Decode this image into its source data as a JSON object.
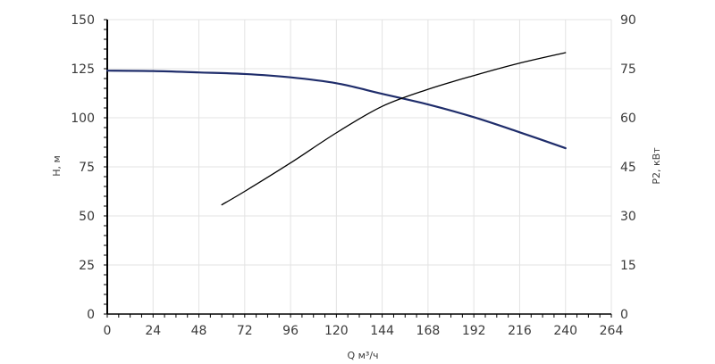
{
  "chart_data": {
    "type": "line",
    "xlabel": "Q м³/ч",
    "ylabel_left": "H, м",
    "ylabel_right": "P2, кВт",
    "xlim": [
      0,
      264
    ],
    "ylim_left": [
      0,
      150
    ],
    "ylim_right": [
      0,
      90
    ],
    "x_ticks": [
      "0",
      "24",
      "48",
      "72",
      "96",
      "120",
      "144",
      "168",
      "192",
      "216",
      "240",
      "264"
    ],
    "y_left_ticks": [
      "0",
      "25",
      "50",
      "75",
      "100",
      "125",
      "150"
    ],
    "y_right_ticks": [
      "0",
      "15",
      "30",
      "45",
      "60",
      "75",
      "90"
    ],
    "grid": true,
    "colors": {
      "head": "#1f2d6b",
      "power": "#000000"
    },
    "series": [
      {
        "axis": "left",
        "color_key": "head",
        "x": [
          0,
          24,
          48,
          72,
          96,
          120,
          144,
          168,
          192,
          216,
          240
        ],
        "y": [
          124.0,
          123.8,
          123.1,
          122.3,
          120.6,
          117.6,
          112.2,
          106.8,
          100.3,
          92.6,
          84.5
        ]
      },
      {
        "axis": "right",
        "color_key": "power",
        "x": [
          60,
          72,
          96,
          120,
          144,
          168,
          192,
          216,
          240
        ],
        "y": [
          33.4,
          37.5,
          46.2,
          55.4,
          63.5,
          68.7,
          72.9,
          76.7,
          79.9
        ]
      }
    ]
  }
}
